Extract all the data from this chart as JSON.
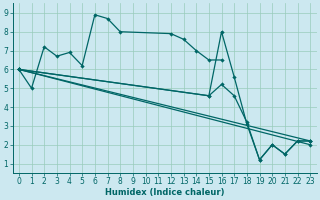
{
  "xlabel": "Humidex (Indice chaleur)",
  "bg_color": "#cce8f0",
  "line_color": "#006666",
  "grid_color": "#99ccbb",
  "xlim": [
    -0.5,
    23.5
  ],
  "ylim": [
    0.5,
    9.5
  ],
  "xticks": [
    0,
    1,
    2,
    3,
    4,
    5,
    6,
    7,
    8,
    9,
    10,
    11,
    12,
    13,
    14,
    15,
    16,
    17,
    18,
    19,
    20,
    21,
    22,
    23
  ],
  "yticks": [
    1,
    2,
    3,
    4,
    5,
    6,
    7,
    8,
    9
  ],
  "lines": [
    {
      "x": [
        0,
        1,
        2,
        3,
        4,
        5,
        6,
        7,
        8,
        12,
        13,
        14,
        15,
        16
      ],
      "y": [
        6.0,
        5.0,
        7.2,
        6.7,
        6.9,
        6.2,
        8.9,
        8.7,
        8.0,
        7.9,
        7.6,
        7.0,
        6.5,
        6.5
      ]
    },
    {
      "x": [
        0,
        23
      ],
      "y": [
        6.0,
        2.2
      ]
    },
    {
      "x": [
        0,
        23
      ],
      "y": [
        6.0,
        2.0
      ]
    },
    {
      "x": [
        0,
        15,
        16,
        17,
        18,
        19,
        20,
        21,
        22,
        23
      ],
      "y": [
        6.0,
        4.6,
        5.2,
        4.6,
        3.2,
        1.2,
        2.0,
        1.5,
        2.2,
        2.2
      ]
    },
    {
      "x": [
        0,
        15,
        16,
        17,
        18,
        19,
        20,
        21,
        22,
        23
      ],
      "y": [
        6.0,
        4.6,
        8.0,
        5.6,
        3.1,
        1.2,
        2.0,
        1.5,
        2.2,
        2.2
      ]
    }
  ]
}
